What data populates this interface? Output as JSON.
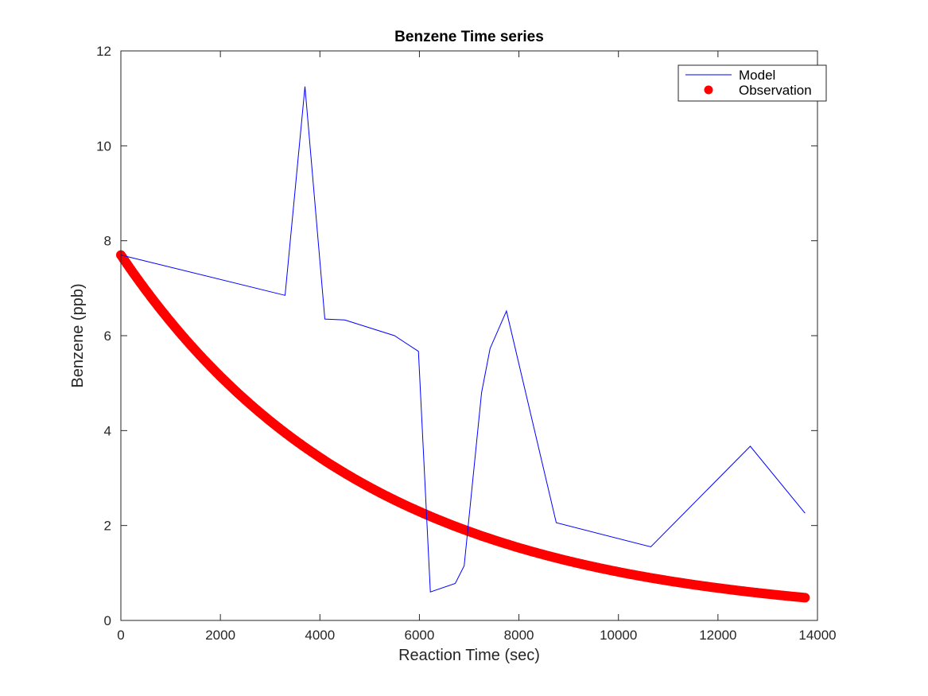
{
  "chart_data": {
    "type": "line",
    "title": "Benzene Time series",
    "xlabel": "Reaction Time (sec)",
    "ylabel": "Benzene (ppb)",
    "xlim": [
      0,
      14000
    ],
    "ylim": [
      0,
      12
    ],
    "x_ticks": [
      0,
      2000,
      4000,
      6000,
      8000,
      10000,
      12000,
      14000
    ],
    "y_ticks": [
      0,
      2,
      4,
      6,
      8,
      10,
      12
    ],
    "grid": false,
    "legend_position": "top-right",
    "series": [
      {
        "name": "Model",
        "kind": "line",
        "color": "#0000ff",
        "x": [
          0,
          3300,
          3700,
          4100,
          4500,
          5500,
          5980,
          6220,
          6720,
          6900,
          7250,
          7420,
          7750,
          8750,
          10650,
          12650,
          13750
        ],
        "y": [
          7.7,
          6.85,
          11.25,
          6.35,
          6.33,
          6.0,
          5.67,
          0.6,
          0.78,
          1.15,
          4.8,
          5.73,
          6.52,
          2.06,
          1.55,
          3.67,
          2.26
        ]
      },
      {
        "name": "Observation",
        "kind": "scatter",
        "color": "#ff0000",
        "decay": {
          "start": 7.7,
          "end": 0.48,
          "x_start": 0,
          "x_end": 13750
        }
      }
    ]
  }
}
